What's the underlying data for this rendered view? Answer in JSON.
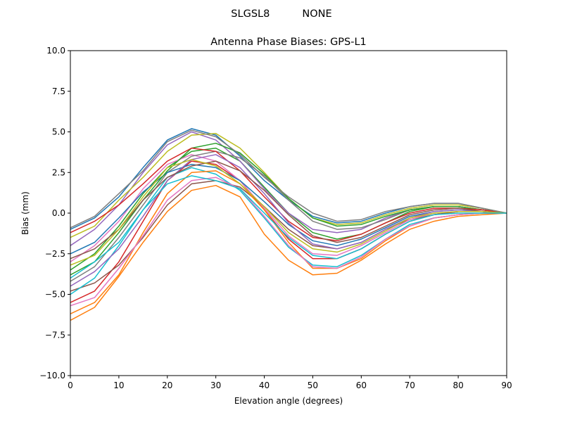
{
  "chart_data": {
    "type": "line",
    "suptitle": "SLGSL8          NONE",
    "title": "Antenna Phase Biases: GPS-L1",
    "xlabel": "Elevation angle (degrees)",
    "ylabel": "Bias (mm)",
    "xlim": [
      0,
      90
    ],
    "ylim": [
      -10,
      10
    ],
    "xticks": [
      0,
      10,
      20,
      30,
      40,
      50,
      60,
      70,
      80,
      90
    ],
    "yticks": [
      -10.0,
      -7.5,
      -5.0,
      -2.5,
      0.0,
      2.5,
      5.0,
      7.5,
      10.0
    ],
    "ytick_labels": [
      "−10.0",
      "−7.5",
      "−5.0",
      "−2.5",
      "0.0",
      "2.5",
      "5.0",
      "7.5",
      "10.0"
    ],
    "grid": false,
    "colors": [
      "#1f77b4",
      "#ff7f0e",
      "#2ca02c",
      "#d62728",
      "#9467bd",
      "#8c564b",
      "#e377c2",
      "#7f7f7f",
      "#bcbd22",
      "#17becf"
    ],
    "x": [
      0,
      5,
      10,
      15,
      20,
      25,
      30,
      35,
      40,
      45,
      50,
      55,
      60,
      65,
      70,
      75,
      80,
      85,
      90
    ],
    "series": [
      {
        "values": [
          -1.0,
          -0.3,
          1.0,
          2.8,
          4.5,
          5.2,
          4.8,
          3.5,
          2.0,
          0.8,
          -0.2,
          -0.6,
          -0.5,
          0.0,
          0.4,
          0.6,
          0.6,
          0.3,
          0
        ]
      },
      {
        "values": [
          -6.6,
          -5.8,
          -3.9,
          -1.8,
          0.1,
          1.4,
          1.7,
          1.0,
          -1.3,
          -2.9,
          -3.8,
          -3.7,
          -2.9,
          -1.9,
          -1.0,
          -0.5,
          -0.2,
          -0.1,
          0
        ]
      },
      {
        "values": [
          -3.5,
          -2.5,
          -0.8,
          1.2,
          2.8,
          3.8,
          4.0,
          3.2,
          1.6,
          0.0,
          -1.2,
          -1.6,
          -1.3,
          -0.6,
          0.1,
          0.4,
          0.4,
          0.2,
          0
        ]
      },
      {
        "values": [
          -5.5,
          -4.8,
          -3.0,
          -0.5,
          2.0,
          3.2,
          3.0,
          2.0,
          0.2,
          -1.6,
          -2.8,
          -2.8,
          -2.2,
          -1.3,
          -0.5,
          -0.1,
          0.1,
          0.1,
          0
        ]
      },
      {
        "values": [
          -2.0,
          -1.0,
          0.5,
          2.5,
          4.2,
          5.0,
          4.5,
          3.2,
          1.5,
          0.0,
          -1.0,
          -1.2,
          -1.0,
          -0.3,
          0.2,
          0.4,
          0.4,
          0.2,
          0
        ]
      },
      {
        "values": [
          -4.8,
          -4.3,
          -3.2,
          -1.5,
          0.5,
          1.8,
          2.0,
          1.6,
          0.4,
          -1.0,
          -2.0,
          -2.2,
          -1.8,
          -1.0,
          -0.4,
          -0.1,
          0.1,
          0.1,
          0
        ]
      },
      {
        "values": [
          -3.0,
          -2.0,
          -0.5,
          1.5,
          3.0,
          3.6,
          3.2,
          2.0,
          0.3,
          -1.4,
          -2.5,
          -2.6,
          -2.0,
          -1.2,
          -0.4,
          0.0,
          0.1,
          0.1,
          0
        ]
      },
      {
        "values": [
          -4.2,
          -3.3,
          -1.5,
          0.5,
          2.5,
          3.5,
          3.8,
          3.4,
          2.3,
          0.8,
          -0.5,
          -1.0,
          -0.9,
          -0.4,
          0.2,
          0.4,
          0.4,
          0.2,
          0
        ]
      },
      {
        "values": [
          -1.5,
          -0.8,
          0.8,
          2.2,
          3.8,
          4.8,
          4.9,
          4.0,
          2.5,
          0.9,
          -0.3,
          -0.7,
          -0.6,
          -0.1,
          0.3,
          0.5,
          0.5,
          0.3,
          0
        ]
      },
      {
        "values": [
          -5.0,
          -4.0,
          -2.0,
          0.2,
          2.2,
          2.8,
          2.4,
          1.4,
          -0.3,
          -2.1,
          -3.2,
          -3.3,
          -2.6,
          -1.6,
          -0.7,
          -0.3,
          -0.1,
          0.0,
          0
        ]
      },
      {
        "values": [
          -2.5,
          -1.8,
          -0.3,
          1.3,
          2.5,
          3.0,
          2.8,
          2.0,
          0.7,
          -0.7,
          -1.7,
          -2.0,
          -1.6,
          -0.9,
          -0.2,
          0.1,
          0.2,
          0.1,
          0
        ]
      },
      {
        "values": [
          -6.2,
          -5.5,
          -3.8,
          -1.2,
          1.2,
          2.5,
          2.6,
          1.8,
          0.2,
          -1.8,
          -3.4,
          -3.4,
          -2.8,
          -1.7,
          -0.8,
          -0.3,
          -0.1,
          0.0,
          0
        ]
      },
      {
        "values": [
          -3.8,
          -3.0,
          -1.2,
          0.8,
          2.6,
          4.0,
          4.3,
          3.7,
          2.4,
          0.9,
          -0.3,
          -0.8,
          -0.7,
          -0.2,
          0.2,
          0.4,
          0.4,
          0.2,
          0
        ]
      },
      {
        "values": [
          -1.2,
          -0.5,
          0.5,
          1.8,
          3.2,
          4.0,
          3.8,
          2.6,
          1.0,
          -0.5,
          -1.5,
          -1.7,
          -1.3,
          -0.6,
          0.0,
          0.3,
          0.3,
          0.2,
          0
        ]
      },
      {
        "values": [
          -4.5,
          -3.6,
          -2.2,
          -0.2,
          2.0,
          3.3,
          3.6,
          2.8,
          1.2,
          -0.6,
          -1.9,
          -2.2,
          -1.8,
          -1.0,
          -0.3,
          0.1,
          0.2,
          0.1,
          0
        ]
      },
      {
        "values": [
          -2.8,
          -2.2,
          -1.0,
          0.8,
          2.2,
          2.9,
          3.2,
          2.6,
          1.4,
          -0.1,
          -1.4,
          -1.8,
          -1.5,
          -0.8,
          -0.1,
          0.2,
          0.3,
          0.1,
          0
        ]
      },
      {
        "values": [
          -5.7,
          -5.2,
          -3.4,
          -1.4,
          0.8,
          2.0,
          2.2,
          1.5,
          -0.2,
          -2.0,
          -3.3,
          -3.4,
          -2.7,
          -1.6,
          -0.8,
          -0.3,
          -0.1,
          0.0,
          0
        ]
      },
      {
        "values": [
          -0.9,
          -0.2,
          1.2,
          2.6,
          4.4,
          5.1,
          4.7,
          3.6,
          2.2,
          1.0,
          0.0,
          -0.5,
          -0.4,
          0.1,
          0.4,
          0.6,
          0.6,
          0.3,
          0
        ]
      },
      {
        "values": [
          -3.2,
          -2.6,
          -1.0,
          1.0,
          2.8,
          3.3,
          2.9,
          1.8,
          0.4,
          -1.2,
          -2.2,
          -2.4,
          -1.9,
          -1.1,
          -0.3,
          0.0,
          0.1,
          0.1,
          0
        ]
      },
      {
        "values": [
          -4.0,
          -3.0,
          -1.8,
          0.2,
          1.8,
          2.3,
          2.0,
          1.5,
          0.0,
          -1.5,
          -2.6,
          -2.8,
          -2.2,
          -1.3,
          -0.5,
          -0.1,
          0.0,
          0.0,
          0
        ]
      }
    ]
  }
}
